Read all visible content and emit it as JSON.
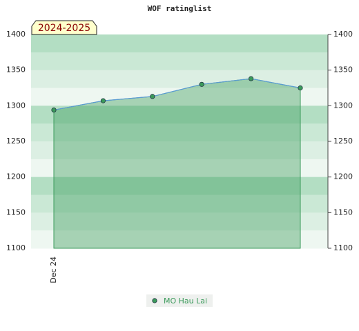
{
  "chart_data": {
    "type": "area",
    "title": "WOF ratinglist",
    "annotation": "2024-2025",
    "categories": [
      "Dec 24",
      null,
      null,
      null,
      null,
      null
    ],
    "series": [
      {
        "name": "MO Hau Lai",
        "color": "#3a9a5a",
        "values": [
          1294,
          1307,
          1313,
          1330,
          1338,
          1325
        ]
      }
    ],
    "ylim": [
      1100,
      1400
    ],
    "yticks": [
      1100,
      1150,
      1200,
      1250,
      1300,
      1350,
      1400
    ]
  }
}
